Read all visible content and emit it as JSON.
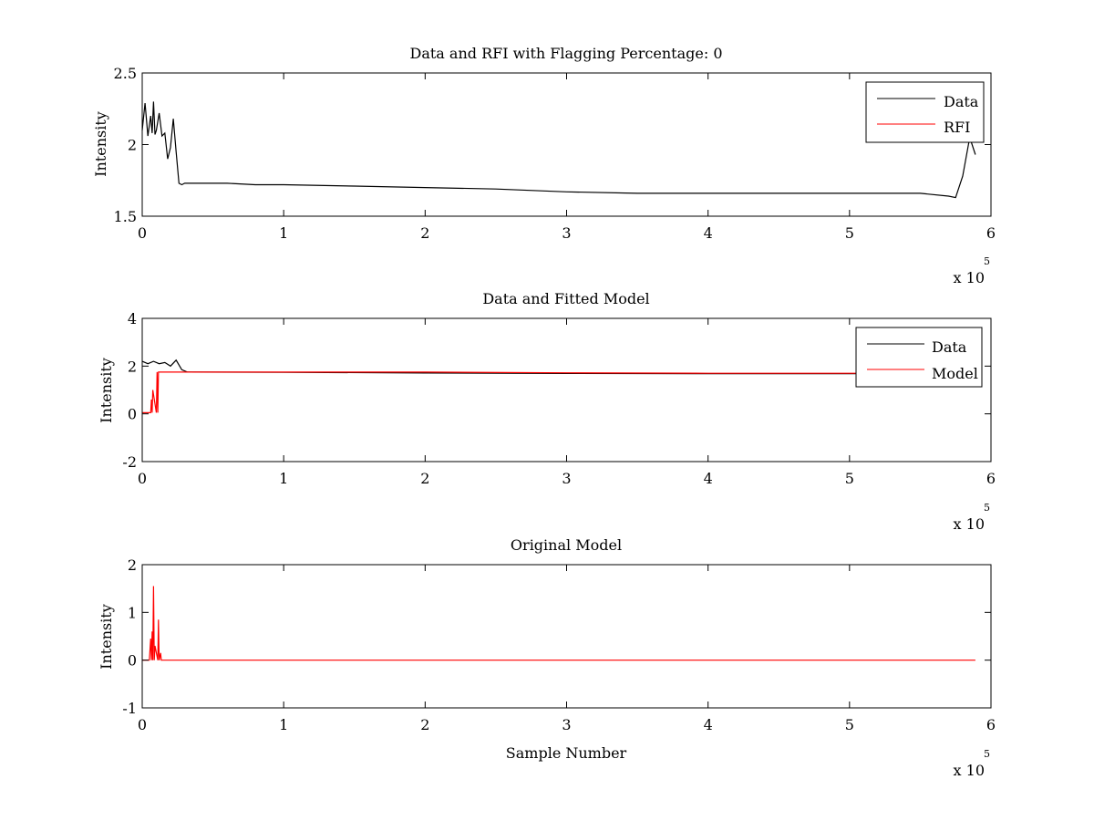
{
  "chart_data": [
    {
      "type": "line",
      "title": "Data and RFI with Flagging Percentage: 0",
      "xlabel": "",
      "ylabel": "Intensity",
      "xlim": [
        0,
        600000
      ],
      "ylim": [
        1.5,
        2.5
      ],
      "x_ticks": [
        "0",
        "1",
        "2",
        "3",
        "4",
        "5",
        "6"
      ],
      "y_ticks": [
        "1.5",
        "2",
        "2.5"
      ],
      "x_multiplier": "x 10",
      "x_exponent": "5",
      "legend": {
        "position": "top-right",
        "entries": [
          "Data",
          "RFI"
        ]
      },
      "series": [
        {
          "name": "Data",
          "color": "#000000",
          "x": [
            0,
            2000,
            4000,
            6000,
            7000,
            8000,
            9000,
            10000,
            12000,
            14000,
            16000,
            18000,
            20000,
            22000,
            24000,
            26000,
            28000,
            30000,
            40000,
            60000,
            80000,
            100000,
            150000,
            200000,
            250000,
            300000,
            350000,
            400000,
            450000,
            500000,
            550000,
            570000,
            575000,
            580000,
            585000,
            589000
          ],
          "y": [
            2.1,
            2.29,
            2.06,
            2.2,
            2.08,
            2.3,
            2.07,
            2.1,
            2.22,
            2.06,
            2.08,
            1.9,
            1.98,
            2.18,
            1.95,
            1.73,
            1.72,
            1.73,
            1.73,
            1.73,
            1.72,
            1.72,
            1.71,
            1.7,
            1.69,
            1.67,
            1.66,
            1.66,
            1.66,
            1.66,
            1.66,
            1.64,
            1.63,
            1.78,
            2.05,
            1.93
          ]
        },
        {
          "name": "RFI",
          "color": "#ff0000",
          "x": [],
          "y": []
        }
      ]
    },
    {
      "type": "line",
      "title": "Data and Fitted Model",
      "xlabel": "",
      "ylabel": "Intensity",
      "xlim": [
        0,
        600000
      ],
      "ylim": [
        -2,
        4
      ],
      "x_ticks": [
        "0",
        "1",
        "2",
        "3",
        "4",
        "5",
        "6"
      ],
      "y_ticks": [
        "-2",
        "0",
        "2",
        "4"
      ],
      "x_multiplier": "x 10",
      "x_exponent": "5",
      "legend": {
        "position": "top-right",
        "entries": [
          "Data",
          "Model"
        ]
      },
      "series": [
        {
          "name": "Data",
          "color": "#000000",
          "x": [
            0,
            4000,
            8000,
            12000,
            16000,
            20000,
            24000,
            28000,
            32000,
            100000,
            200000,
            300000,
            400000,
            500000,
            589000
          ],
          "y": [
            2.2,
            2.1,
            2.2,
            2.1,
            2.15,
            2.0,
            2.25,
            1.85,
            1.75,
            1.74,
            1.71,
            1.69,
            1.68,
            1.68,
            1.7
          ]
        },
        {
          "name": "Model",
          "color": "#ff0000",
          "x": [
            0,
            6000,
            6500,
            7000,
            7500,
            10000,
            10500,
            11000,
            11500,
            12000,
            100000,
            200000,
            300000,
            400000,
            500000,
            589000
          ],
          "y": [
            0.05,
            0.05,
            0.6,
            0.05,
            1.0,
            0.05,
            1.75,
            0.05,
            1.75,
            1.75,
            1.75,
            1.75,
            1.72,
            1.7,
            1.7,
            1.7
          ]
        }
      ]
    },
    {
      "type": "line",
      "title": "Original Model",
      "xlabel": "Sample Number",
      "ylabel": "Intensity",
      "xlim": [
        0,
        600000
      ],
      "ylim": [
        -1,
        2
      ],
      "x_ticks": [
        "0",
        "1",
        "2",
        "3",
        "4",
        "5",
        "6"
      ],
      "y_ticks": [
        "-1",
        "0",
        "1",
        "2"
      ],
      "x_multiplier": "x 10",
      "x_exponent": "5",
      "series": [
        {
          "name": "",
          "color": "#ff0000",
          "x": [
            0,
            5000,
            6000,
            6500,
            7000,
            7500,
            8000,
            8500,
            9000,
            11000,
            11500,
            12000,
            13000,
            13500,
            14000,
            589000
          ],
          "y": [
            0,
            0,
            0.45,
            0,
            0.6,
            0,
            1.55,
            0,
            0.3,
            0,
            0.85,
            0,
            0.15,
            0,
            0,
            0
          ]
        }
      ]
    }
  ]
}
